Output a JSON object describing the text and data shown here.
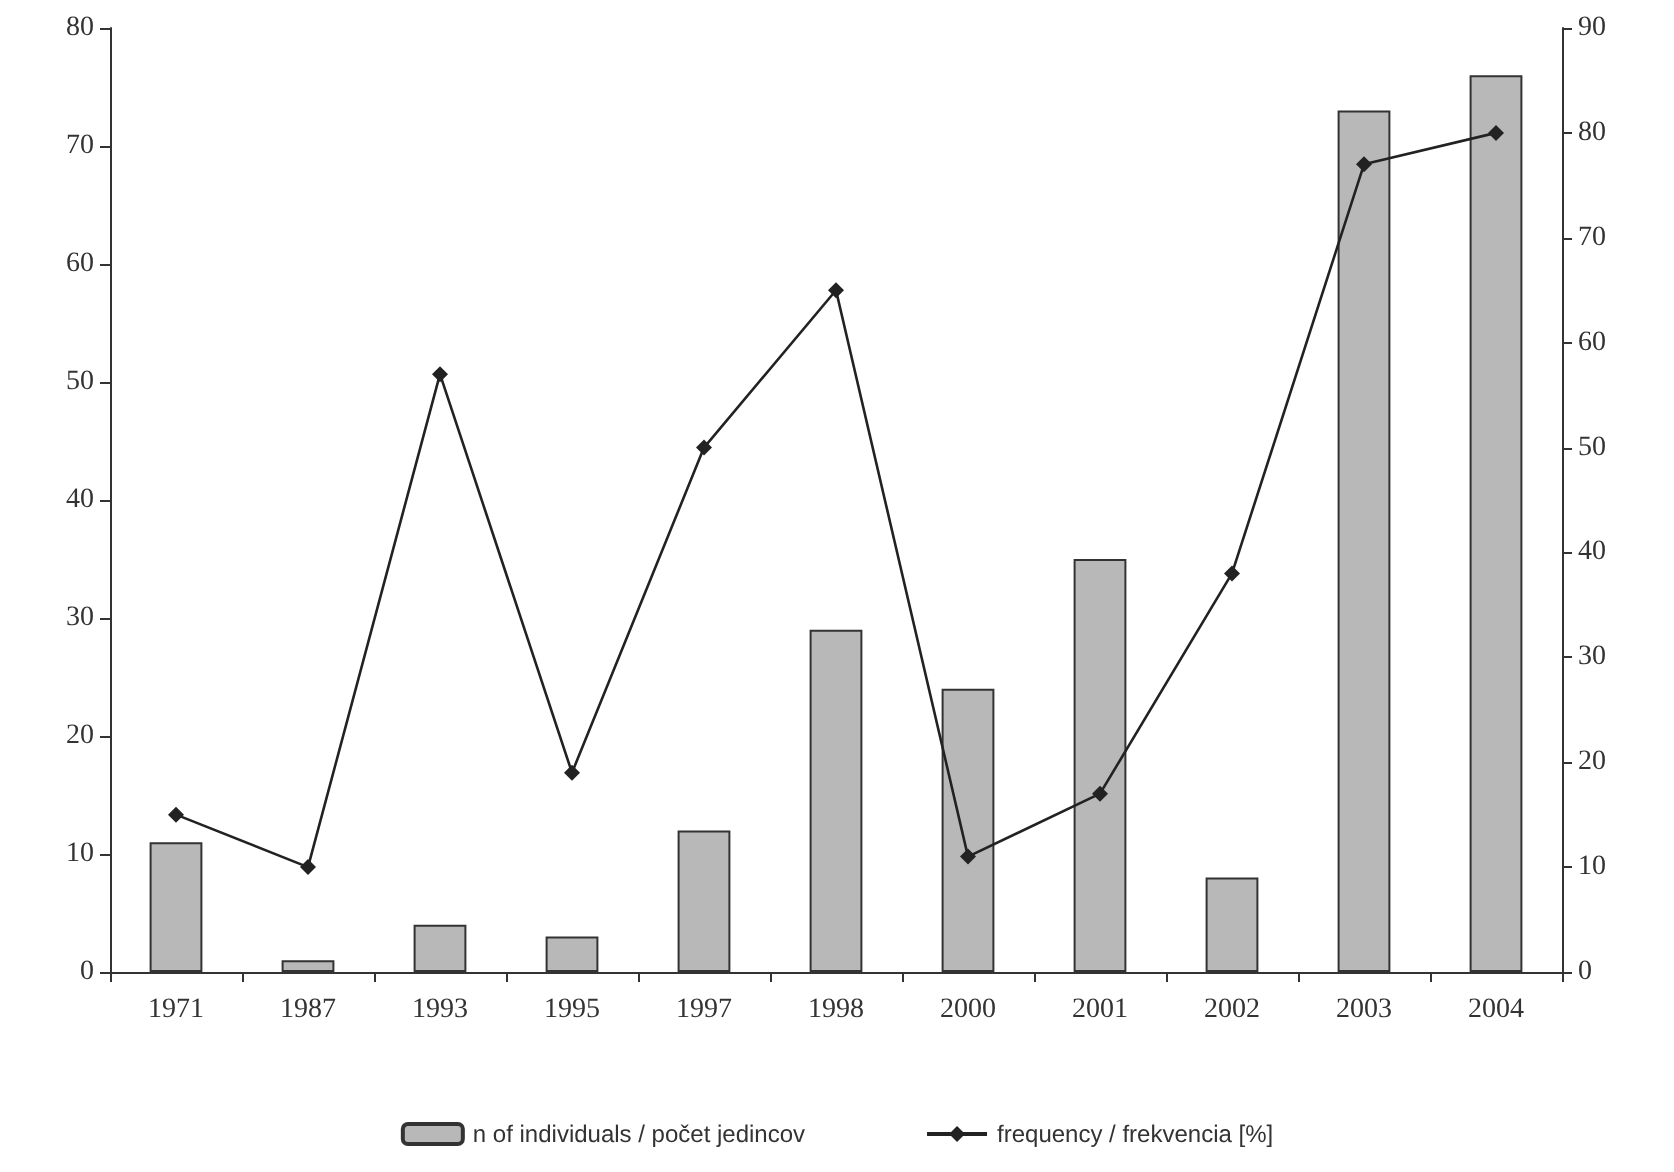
{
  "chart_data": {
    "type": "bar",
    "categories": [
      "1971",
      "1987",
      "1993",
      "1995",
      "1997",
      "1998",
      "2000",
      "2001",
      "2002",
      "2003",
      "2004"
    ],
    "series": [
      {
        "name": "n of individuals / počet jedincov",
        "color": "#b8b8b8",
        "values": [
          11,
          1,
          4,
          3,
          12,
          29,
          24,
          35,
          8,
          73,
          76
        ]
      },
      {
        "name": "frequency / frekvencia [%]",
        "type": "line",
        "axis": "y2",
        "color": "#222222",
        "marker": "diamond",
        "values": [
          15,
          10,
          57,
          19,
          50,
          65,
          11,
          17,
          38,
          77,
          80
        ]
      }
    ],
    "ylim": [
      0,
      80
    ],
    "yticks": [
      0,
      10,
      20,
      30,
      40,
      50,
      60,
      70,
      80
    ],
    "y2lim": [
      0,
      90
    ],
    "y2ticks": [
      0,
      10,
      20,
      30,
      40,
      50,
      60,
      70,
      80,
      90
    ],
    "grid": false,
    "legend": "bottom"
  }
}
